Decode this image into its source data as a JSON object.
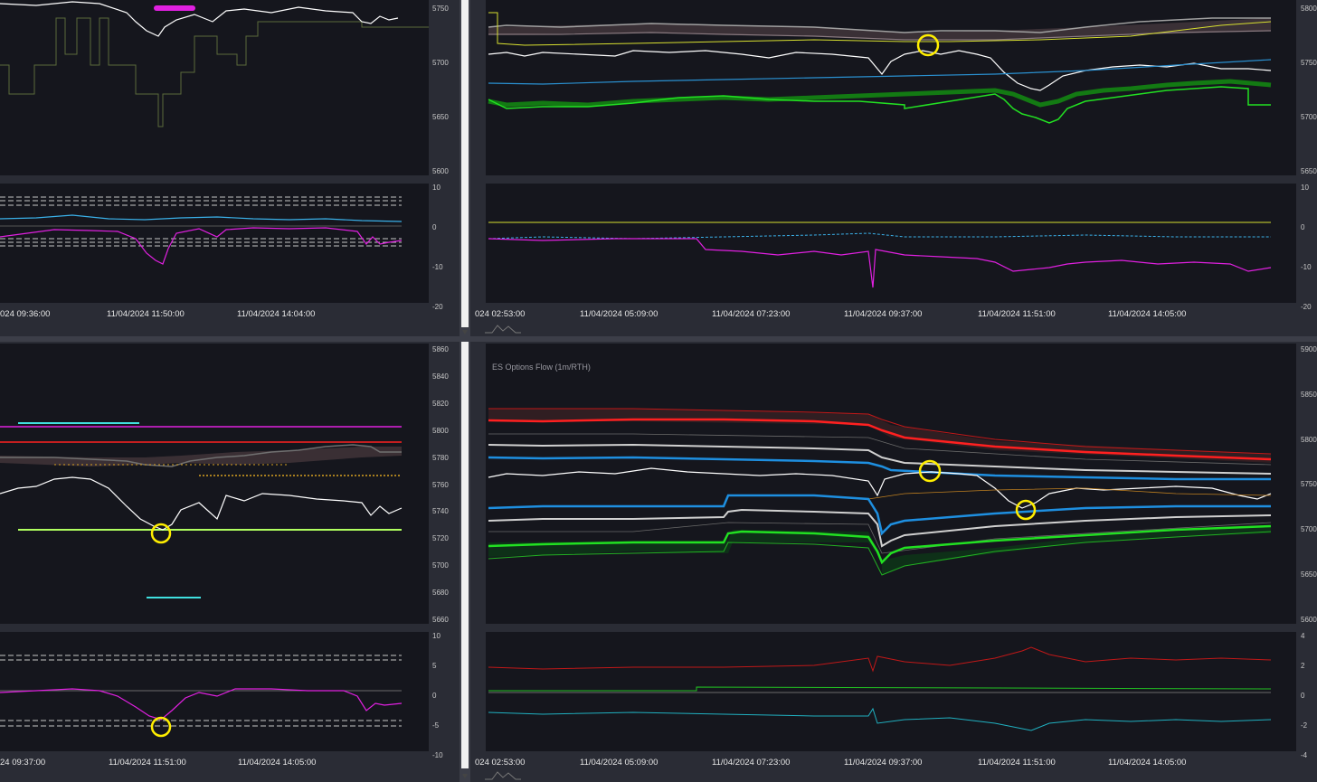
{
  "panels": {
    "top_left": {
      "price_ticks": [
        "5750",
        "5700",
        "5650",
        "5600"
      ],
      "osc_ticks": [
        "10",
        "0",
        "-10",
        "-20"
      ],
      "dates": [
        "024 09:36:00",
        "11/04/2024 11:50:00",
        "11/04/2024 14:04:00"
      ]
    },
    "top_right": {
      "price_ticks": [
        "5800",
        "5750",
        "5700",
        "5650"
      ],
      "osc_ticks": [
        "10",
        "0",
        "-10",
        "-20"
      ],
      "dates": [
        "024 02:53:00",
        "11/04/2024 05:09:00",
        "11/04/2024 07:23:00",
        "11/04/2024 09:37:00",
        "11/04/2024 11:51:00",
        "11/04/2024 14:05:00"
      ]
    },
    "bottom_left": {
      "price_ticks": [
        "5860",
        "5840",
        "5820",
        "5800",
        "5780",
        "5760",
        "5740",
        "5720",
        "5700",
        "5680",
        "5660"
      ],
      "osc_ticks": [
        "10",
        "5",
        "0",
        "-5",
        "-10"
      ],
      "dates": [
        "24 09:37:00",
        "11/04/2024 11:51:00",
        "11/04/2024 14:05:00"
      ]
    },
    "bottom_right": {
      "title": "ES Options Flow (1m/RTH)",
      "price_ticks": [
        "5900",
        "5850",
        "5800",
        "5750",
        "5700",
        "5650",
        "5600"
      ],
      "osc_ticks": [
        "4",
        "2",
        "0",
        "-2",
        "-4"
      ],
      "dates": [
        "024 02:53:00",
        "11/04/2024 05:09:00",
        "11/04/2024 07:23:00",
        "11/04/2024 09:37:00",
        "11/04/2024 11:51:00",
        "11/04/2024 14:05:00"
      ]
    }
  },
  "colors": {
    "background": "#15161d",
    "frame": "#2a2c35",
    "price": "#ffffff",
    "green": "#22e022",
    "red": "#ff2020",
    "blue": "#1e8fe0",
    "cyan": "#3ab0e8",
    "magenta": "#e020e0",
    "yellow": "#e8e820",
    "gray": "#aaaaaa",
    "annotation": "#ffee00"
  }
}
